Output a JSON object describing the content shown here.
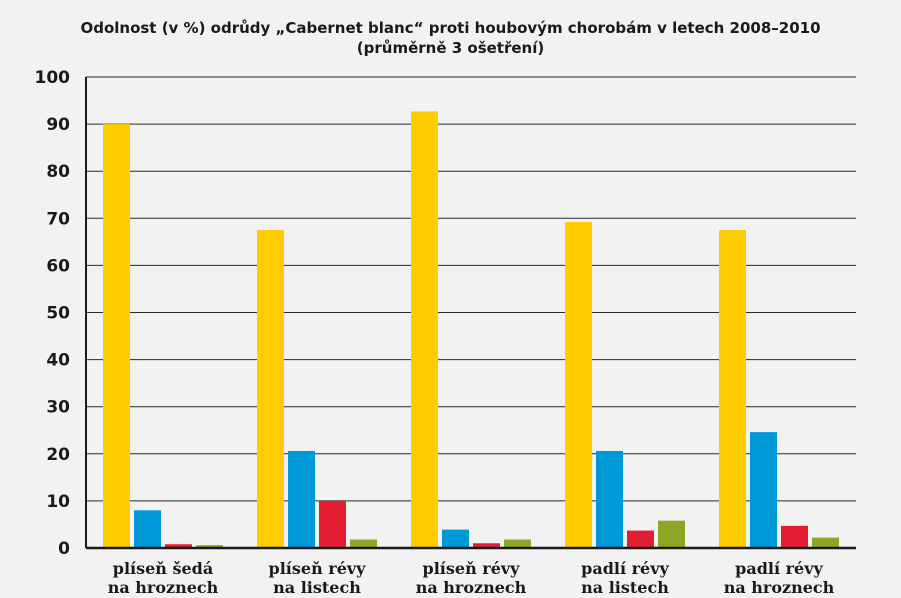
{
  "chart_data": {
    "type": "bar",
    "title": "Odolnost (v %) odrůdy „Cabernet blanc“ proti houbovým chorobám v letech 2008–2010",
    "subtitle": "(průměrně 3 ošetření)",
    "categories": [
      [
        "plíseň šedá",
        "na hroznech"
      ],
      [
        "plíseň révy",
        "na listech"
      ],
      [
        "plíseň révy",
        "na hroznech"
      ],
      [
        "padlí révy",
        "na listech"
      ],
      [
        "padlí révy",
        "na hroznech"
      ]
    ],
    "series": [
      {
        "values": [
          90,
          67.5,
          92.7,
          69.2,
          67.5
        ],
        "color": "#ffcc00"
      },
      {
        "values": [
          8,
          20.6,
          3.9,
          20.6,
          24.6
        ],
        "color": "#0099d8"
      },
      {
        "values": [
          0.8,
          10,
          1,
          3.7,
          4.7
        ],
        "color": "#e31e32"
      },
      {
        "values": [
          0.6,
          1.8,
          1.8,
          5.8,
          2.2
        ],
        "color": "#8ca628"
      }
    ],
    "yticks": [
      0,
      10,
      20,
      30,
      40,
      50,
      60,
      70,
      80,
      90,
      100
    ],
    "ylim": [
      0,
      100
    ],
    "xlabel": "",
    "ylabel": "",
    "grid": true,
    "legend": "none"
  }
}
